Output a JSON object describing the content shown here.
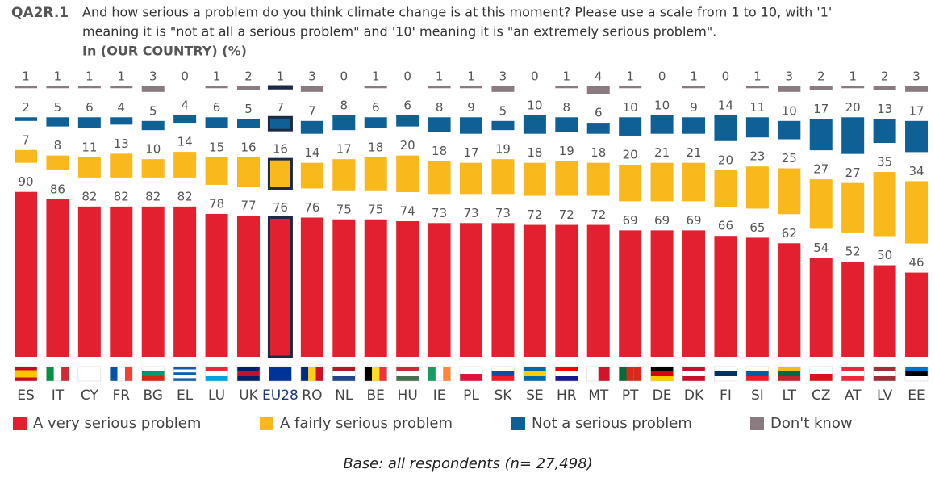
{
  "chart_data": {
    "type": "bar",
    "stacked": true,
    "code": "QA2R.1",
    "question_line1": "And how serious a problem do you think climate change is at this moment? Please use a scale from 1 to 10, with '1'",
    "question_line2": "meaning it is \"not at all a serious problem\" and '10' meaning it is \"an extremely serious problem\".",
    "subtitle": "In (OUR COUNTRY)  (%)",
    "footnote": "Base: all respondents (n= 27,498)",
    "highlight_category": "EU28",
    "categories": [
      "ES",
      "IT",
      "CY",
      "FR",
      "BG",
      "EL",
      "LU",
      "UK",
      "EU28",
      "RO",
      "NL",
      "BE",
      "HU",
      "IE",
      "PL",
      "SK",
      "SE",
      "HR",
      "MT",
      "PT",
      "DE",
      "DK",
      "FI",
      "SI",
      "LT",
      "CZ",
      "AT",
      "LV",
      "EE"
    ],
    "series": [
      {
        "name": "A very serious problem",
        "color": "#e3202f",
        "values": [
          90,
          86,
          82,
          82,
          82,
          82,
          78,
          77,
          76,
          76,
          75,
          75,
          74,
          73,
          73,
          73,
          72,
          72,
          72,
          69,
          69,
          69,
          66,
          65,
          62,
          54,
          52,
          50,
          46
        ]
      },
      {
        "name": "A fairly serious problem",
        "color": "#f9b91d",
        "values": [
          7,
          8,
          11,
          13,
          10,
          14,
          15,
          16,
          16,
          14,
          17,
          18,
          20,
          18,
          17,
          19,
          18,
          19,
          18,
          20,
          21,
          21,
          20,
          23,
          25,
          27,
          27,
          35,
          34
        ]
      },
      {
        "name": "Not a serious problem",
        "color": "#0f6195",
        "values": [
          2,
          5,
          6,
          4,
          5,
          4,
          6,
          5,
          7,
          7,
          8,
          6,
          6,
          8,
          9,
          5,
          10,
          8,
          6,
          10,
          10,
          9,
          14,
          11,
          10,
          17,
          20,
          13,
          17
        ]
      },
      {
        "name": "Don't know",
        "color": "#8b7a80",
        "values": [
          1,
          1,
          1,
          1,
          3,
          0,
          1,
          2,
          1,
          3,
          0,
          1,
          0,
          1,
          1,
          3,
          0,
          1,
          4,
          1,
          0,
          1,
          0,
          1,
          3,
          2,
          1,
          2,
          3
        ]
      }
    ]
  }
}
